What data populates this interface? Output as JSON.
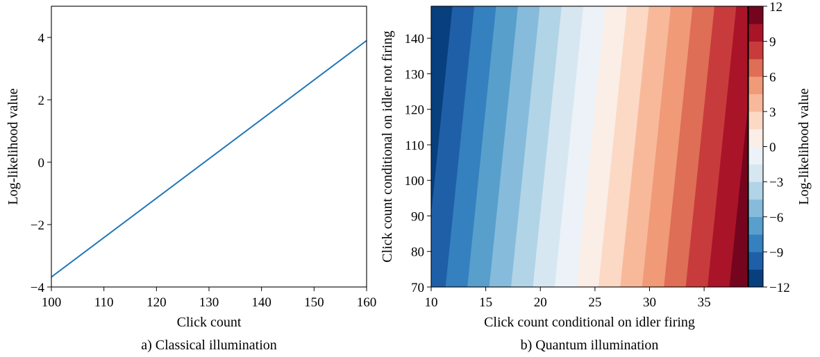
{
  "chart_data": [
    {
      "type": "line",
      "caption": "a) Classical illumination",
      "xlabel": "Click count",
      "ylabel": "Log-likelihood value",
      "xlim": [
        100,
        160
      ],
      "ylim": [
        -4,
        5
      ],
      "xticks": [
        "100",
        "110",
        "120",
        "130",
        "140",
        "150",
        "160"
      ],
      "yticks": [
        "−4",
        "−2",
        "0",
        "2",
        "4"
      ],
      "series": [
        {
          "color": "#1f77b4",
          "x": [
            100,
            160
          ],
          "y": [
            -3.68,
            3.9
          ]
        }
      ],
      "grid": false
    },
    {
      "type": "heatmap",
      "subtype": "filled-contour",
      "caption": "b) Quantum illumination",
      "xlabel": "Click count conditional on idler firing",
      "ylabel": "Click count conditional on idler not firing",
      "xlim": [
        10,
        39
      ],
      "ylim": [
        70,
        149
      ],
      "xticks": [
        "10",
        "15",
        "20",
        "25",
        "30",
        "35"
      ],
      "yticks": [
        "70",
        "80",
        "90",
        "100",
        "110",
        "120",
        "130",
        "140"
      ],
      "colorbar_label": "Log-likelihood value",
      "colorbar_ticks": [
        "12",
        "9",
        "6",
        "3",
        "0",
        "−3",
        "−6",
        "−9",
        "−12"
      ],
      "levels": [
        -12,
        -10.5,
        -9,
        -7.5,
        -6,
        -4.5,
        -3,
        -1.5,
        0,
        1.5,
        3,
        4.5,
        6,
        7.5,
        9,
        10.5,
        12
      ],
      "band_colors": [
        "#083f7d",
        "#1f5fa8",
        "#3580bf",
        "#589fcc",
        "#86bbdb",
        "#b1d4e7",
        "#d7e7f1",
        "#ecf2f8",
        "#faeee7",
        "#fcd9c5",
        "#f8b99b",
        "#f09a78",
        "#de6e56",
        "#c83b3c",
        "#aa1428",
        "#75051e"
      ],
      "value_model": {
        "at_x10_y70": -10.0,
        "per_x": 0.75,
        "per_y": -0.025
      },
      "grid": false
    }
  ]
}
